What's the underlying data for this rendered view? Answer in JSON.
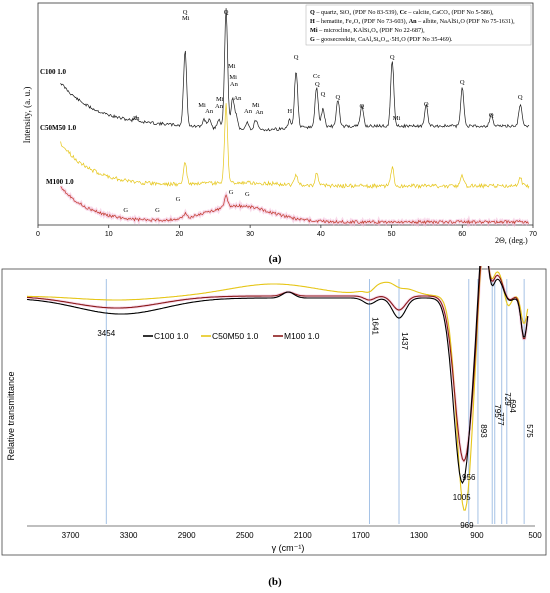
{
  "panel_a": {
    "label": "(a)",
    "chart_data": {
      "type": "line",
      "xlabel": "2Θ, (deg.)",
      "ylabel": "Intensity, (a. u.)",
      "xlim": [
        0,
        70
      ],
      "x_ticks": [
        0,
        10,
        20,
        30,
        40,
        50,
        60,
        70
      ],
      "series": [
        {
          "name": "C100 1.0",
          "color": "#1a1a1a"
        },
        {
          "name": "C50M50 1.0",
          "color": "#e6c619"
        },
        {
          "name": "M100 1.0",
          "color": "#c0392b"
        }
      ],
      "legend": [
        {
          "key": "Q",
          "text": " – quartz, SiO₂ (PDF No 83-539), ",
          "key2": "Cc",
          "text2": " – calcite, CaCO₃ (PDF No 5-586),"
        },
        {
          "key": "H",
          "text": " – hematite, Fe₂O₃ (PDF No 73-603), ",
          "key2": "An",
          "text2": " – albite, NaAlSi₃O (PDF No 75-1631),"
        },
        {
          "key": "Mi",
          "text": " – microcline, KAlSi₃O₈ (PDF No 22-687),",
          "key2": "",
          "text2": ""
        },
        {
          "key": "G",
          "text": " – goosecreekite, CaAl₂Si₆O₁₆·5H₂O (PDF No 35-469).",
          "key2": "",
          "text2": ""
        }
      ],
      "annotations": [
        {
          "text": "Q",
          "x": 20.8,
          "row": "c1"
        },
        {
          "text": "Mi",
          "x": 20.9,
          "row": "c2"
        },
        {
          "text": "Q",
          "x": 26.6,
          "row": "c1"
        },
        {
          "text": "Mi",
          "x": 27.4,
          "row": "mi1"
        },
        {
          "text": "Mi",
          "x": 27.6,
          "row": "mi2"
        },
        {
          "text": "An",
          "x": 27.7,
          "row": "an1"
        },
        {
          "text": "Mi",
          "x": 23.2,
          "row": "low1"
        },
        {
          "text": "An",
          "x": 24.2,
          "row": "low2"
        },
        {
          "text": "Mi",
          "x": 25.7,
          "row": "low1b"
        },
        {
          "text": "An",
          "x": 25.6,
          "row": "low2b"
        },
        {
          "text": "An",
          "x": 28.2,
          "row": "an2"
        },
        {
          "text": "Mi",
          "x": 30.8,
          "row": "low1"
        },
        {
          "text": "An",
          "x": 29.7,
          "row": "low2"
        },
        {
          "text": "An",
          "x": 31.3,
          "row": "low3"
        },
        {
          "text": "An",
          "x": 13.8,
          "row": "an-left"
        },
        {
          "text": "H",
          "x": 35.6,
          "row": "low2"
        },
        {
          "text": "Q",
          "x": 36.5,
          "row": "q2"
        },
        {
          "text": "Cc",
          "x": 39.4,
          "row": "cc"
        },
        {
          "text": "Q",
          "x": 39.5,
          "row": "q3"
        },
        {
          "text": "Q",
          "x": 40.3,
          "row": "q4"
        },
        {
          "text": "Q",
          "x": 42.4,
          "row": "q5"
        },
        {
          "text": "Q",
          "x": 45.8,
          "row": "q6"
        },
        {
          "text": "Q",
          "x": 50.1,
          "row": "q7"
        },
        {
          "text": "Mi",
          "x": 50.7,
          "row": "mi-low"
        },
        {
          "text": "Q",
          "x": 54.9,
          "row": "q8"
        },
        {
          "text": "Q",
          "x": 60.0,
          "row": "q9"
        },
        {
          "text": "Q",
          "x": 64.1,
          "row": "q10"
        },
        {
          "text": "Q",
          "x": 68.2,
          "row": "q11"
        },
        {
          "text": "G",
          "x": 12.4,
          "row": "g"
        },
        {
          "text": "G",
          "x": 16.9,
          "row": "g"
        },
        {
          "text": "G",
          "x": 19.8,
          "row": "g2"
        },
        {
          "text": "G",
          "x": 27.3,
          "row": "g3"
        },
        {
          "text": "G",
          "x": 29.6,
          "row": "g4"
        }
      ]
    }
  },
  "panel_b": {
    "label": "(b)",
    "chart_data": {
      "type": "line",
      "xlabel": "γ (cm⁻¹)",
      "ylabel": "Relative transmittance",
      "xlim": [
        4000,
        500
      ],
      "x_ticks": [
        3700,
        3300,
        2900,
        2500,
        2100,
        1700,
        1300,
        900,
        500
      ],
      "series": [
        {
          "name": "C100 1.0",
          "color": "#000000"
        },
        {
          "name": "C50M50 1.0",
          "color": "#e6c619"
        },
        {
          "name": "M100 1.0",
          "color": "#8b1a1a"
        }
      ],
      "vertical_lines": [
        3454,
        1641,
        1437,
        956,
        893,
        795,
        777,
        729,
        694,
        575
      ],
      "band_labels": [
        "3454",
        "1641",
        "1437",
        "1005",
        "956",
        "969",
        "893",
        "795",
        "777",
        "729",
        "694",
        "575"
      ]
    }
  }
}
